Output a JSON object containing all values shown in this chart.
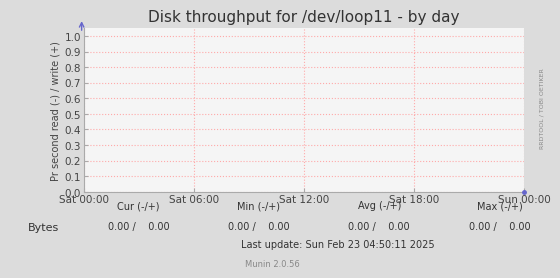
{
  "title": "Disk throughput for /dev/loop11 - by day",
  "ylabel": "Pr second read (-) / write (+)",
  "yticks": [
    0.0,
    0.1,
    0.2,
    0.3,
    0.4,
    0.5,
    0.6,
    0.7,
    0.8,
    0.9,
    1.0
  ],
  "ylim": [
    0.0,
    1.05
  ],
  "xtick_labels": [
    "Sat 00:00",
    "Sat 06:00",
    "Sat 12:00",
    "Sat 18:00",
    "Sun 00:00"
  ],
  "bg_color": "#dcdcdc",
  "plot_bg_color": "#f5f5f5",
  "grid_color": "#ffaaaa",
  "title_fontsize": 11,
  "tick_fontsize": 7.5,
  "ylabel_fontsize": 7,
  "legend_label": "Bytes",
  "legend_color": "#00aa00",
  "last_update": "Last update: Sun Feb 23 04:50:11 2025",
  "munin_label": "Munin 2.0.56",
  "right_label": "RRDTOOL / TOBI OETIKER",
  "arrow_color": "#6666cc",
  "dot_color": "#6666cc",
  "border_color": "#aaaaaa",
  "cur_label": "Cur (-/+)",
  "min_label": "Min (-/+)",
  "avg_label": "Avg (-/+)",
  "max_label": "Max (-/+)",
  "bytes_cur": "0.00 /    0.00",
  "bytes_min": "0.00 /    0.00",
  "bytes_avg": "0.00 /    0.00",
  "bytes_max": "0.00 /    0.00"
}
